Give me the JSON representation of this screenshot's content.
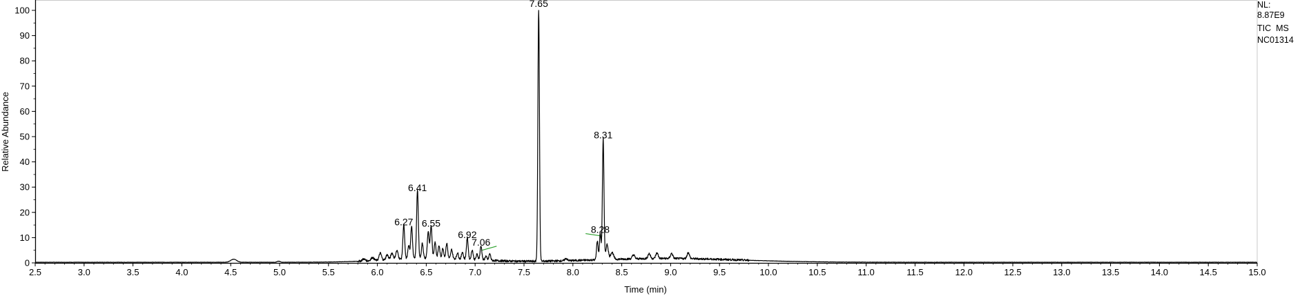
{
  "chart_data": {
    "type": "line",
    "title": "",
    "xlabel": "Time (min)",
    "ylabel": "Relative Abundance",
    "xlim": [
      2.5,
      15.0
    ],
    "ylim": [
      0,
      100
    ],
    "x_ticks": [
      2.5,
      3.0,
      3.5,
      4.0,
      4.5,
      5.0,
      5.5,
      6.0,
      6.5,
      7.0,
      7.5,
      8.0,
      8.5,
      9.0,
      9.5,
      10.0,
      10.5,
      11.0,
      11.5,
      12.0,
      12.5,
      13.0,
      13.5,
      14.0,
      14.5,
      15.0
    ],
    "x_tick_labels": [
      "2.5",
      "3.0",
      "3.5",
      "4.0",
      "4.5",
      "5.0",
      "5.5",
      "6.0",
      "6.5",
      "7.0",
      "7.5",
      "8.0",
      "8.5",
      "9.0",
      "9.5",
      "10.0",
      "10.5",
      "11.0",
      "11.5",
      "12.0",
      "12.5",
      "13.0",
      "13.5",
      "14.0",
      "14.5",
      "15.0"
    ],
    "y_ticks": [
      0,
      10,
      20,
      30,
      40,
      50,
      60,
      70,
      80,
      90,
      100
    ],
    "y_tick_labels": [
      "0",
      "10",
      "20",
      "30",
      "40",
      "50",
      "60",
      "70",
      "80",
      "90",
      "100"
    ],
    "grid": false,
    "info": {
      "nl_label": "NL:",
      "nl_value": "8.87E9",
      "scan_filter": "TIC  MS",
      "sample_name": "NC01314"
    },
    "peaks": [
      {
        "x": 4.53,
        "y": 1.2,
        "width": 0.03
      },
      {
        "x": 4.99,
        "y": 0.4,
        "width": 0.015
      },
      {
        "x": 5.86,
        "y": 0.8,
        "width": 0.015
      },
      {
        "x": 5.95,
        "y": 1.2,
        "width": 0.015
      },
      {
        "x": 6.03,
        "y": 2.8,
        "width": 0.012
      },
      {
        "x": 6.1,
        "y": 2.0,
        "width": 0.012
      },
      {
        "x": 6.15,
        "y": 2.6,
        "width": 0.012
      },
      {
        "x": 6.2,
        "y": 3.4,
        "width": 0.012
      },
      {
        "x": 6.27,
        "y": 13.5,
        "width": 0.009
      },
      {
        "x": 6.32,
        "y": 5.0,
        "width": 0.009
      },
      {
        "x": 6.35,
        "y": 13.0,
        "width": 0.009
      },
      {
        "x": 6.41,
        "y": 27.0,
        "width": 0.009
      },
      {
        "x": 6.46,
        "y": 6.0,
        "width": 0.009
      },
      {
        "x": 6.52,
        "y": 10.5,
        "width": 0.009
      },
      {
        "x": 6.55,
        "y": 13.0,
        "width": 0.009
      },
      {
        "x": 6.59,
        "y": 6.5,
        "width": 0.009
      },
      {
        "x": 6.63,
        "y": 5.0,
        "width": 0.009
      },
      {
        "x": 6.67,
        "y": 4.0,
        "width": 0.009
      },
      {
        "x": 6.71,
        "y": 6.0,
        "width": 0.009
      },
      {
        "x": 6.76,
        "y": 3.6,
        "width": 0.009
      },
      {
        "x": 6.82,
        "y": 2.4,
        "width": 0.009
      },
      {
        "x": 6.87,
        "y": 2.8,
        "width": 0.009
      },
      {
        "x": 6.92,
        "y": 8.5,
        "width": 0.009
      },
      {
        "x": 6.97,
        "y": 3.8,
        "width": 0.009
      },
      {
        "x": 7.02,
        "y": 2.2,
        "width": 0.009
      },
      {
        "x": 7.06,
        "y": 5.5,
        "width": 0.009
      },
      {
        "x": 7.11,
        "y": 1.6,
        "width": 0.009
      },
      {
        "x": 7.15,
        "y": 2.6,
        "width": 0.009
      },
      {
        "x": 7.65,
        "y": 100.0,
        "width": 0.008
      },
      {
        "x": 7.93,
        "y": 0.9,
        "width": 0.012
      },
      {
        "x": 8.25,
        "y": 7.5,
        "width": 0.008
      },
      {
        "x": 8.28,
        "y": 10.5,
        "width": 0.008
      },
      {
        "x": 8.31,
        "y": 48.0,
        "width": 0.008
      },
      {
        "x": 8.35,
        "y": 6.0,
        "width": 0.012
      },
      {
        "x": 8.4,
        "y": 2.8,
        "width": 0.015
      },
      {
        "x": 8.62,
        "y": 1.6,
        "width": 0.012
      },
      {
        "x": 8.78,
        "y": 2.0,
        "width": 0.012
      },
      {
        "x": 8.86,
        "y": 2.2,
        "width": 0.012
      },
      {
        "x": 9.01,
        "y": 2.0,
        "width": 0.012
      },
      {
        "x": 9.18,
        "y": 2.4,
        "width": 0.012
      }
    ],
    "baseline_humps": [
      {
        "x": 6.55,
        "y": 1.6,
        "width": 0.45
      },
      {
        "x": 8.95,
        "y": 1.5,
        "width": 0.75
      }
    ],
    "peak_labels": [
      {
        "x": 6.27,
        "y": 13.5,
        "text": "6.27"
      },
      {
        "x": 6.41,
        "y": 27.0,
        "text": "6.41"
      },
      {
        "x": 6.55,
        "y": 13.0,
        "text": "6.55"
      },
      {
        "x": 6.92,
        "y": 8.5,
        "text": "6.92"
      },
      {
        "x": 7.06,
        "y": 5.5,
        "text": "7.06"
      },
      {
        "x": 7.65,
        "y": 100.0,
        "text": "7.65"
      },
      {
        "x": 8.28,
        "y": 10.5,
        "text": "8.28"
      },
      {
        "x": 8.31,
        "y": 48.0,
        "text": "8.31"
      }
    ],
    "series": [
      {
        "color": "#000000"
      }
    ],
    "integration_marker_color": "#2ca02c"
  }
}
